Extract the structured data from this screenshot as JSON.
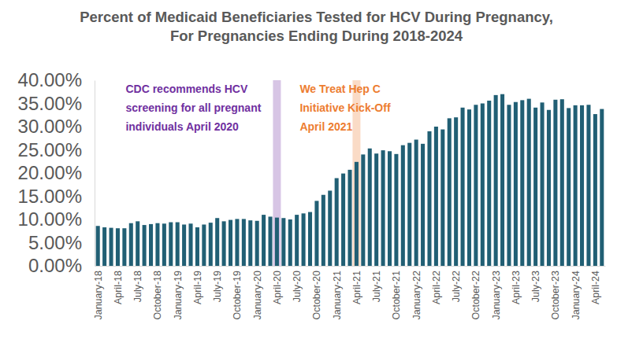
{
  "chart_data": {
    "type": "bar",
    "title": "Percent of Medicaid Beneficiaries Tested for HCV During Pregnancy, For Pregnancies Ending During 2018-2024",
    "categories": [
      "January-18",
      null,
      null,
      "April-18",
      null,
      null,
      "July-18",
      null,
      null,
      "October-18",
      null,
      null,
      "January-19",
      null,
      null,
      "April-19",
      null,
      null,
      "July-19",
      null,
      null,
      "October-19",
      null,
      null,
      "January-20",
      null,
      null,
      "April-20",
      null,
      null,
      "July-20",
      null,
      null,
      "October-20",
      null,
      null,
      "January-21",
      null,
      null,
      "April-21",
      null,
      null,
      "July-21",
      null,
      null,
      "October-21",
      null,
      null,
      "January-22",
      null,
      null,
      "April-22",
      null,
      null,
      "July-22",
      null,
      null,
      "October-22",
      null,
      null,
      "January-23",
      null,
      null,
      "April-23",
      null,
      null,
      "July-23",
      null,
      null,
      "October-23",
      null,
      null,
      "January-24",
      null,
      null,
      "April-24",
      null
    ],
    "values": [
      8.6,
      8.3,
      8.2,
      8.1,
      8.1,
      9.2,
      9.6,
      8.8,
      9.0,
      9.2,
      9.1,
      9.4,
      9.4,
      8.9,
      9.1,
      8.3,
      8.9,
      9.3,
      10.3,
      9.6,
      9.9,
      10.1,
      10.1,
      9.8,
      9.7,
      11.0,
      10.6,
      10.4,
      10.3,
      10.0,
      11.0,
      11.3,
      11.6,
      14.0,
      15.3,
      16.2,
      18.9,
      19.9,
      20.7,
      22.4,
      24.0,
      25.3,
      24.2,
      24.9,
      24.7,
      24.1,
      26.0,
      26.5,
      27.2,
      26.3,
      29.0,
      30.0,
      29.4,
      31.8,
      32.0,
      34.1,
      33.7,
      34.7,
      35.0,
      35.6,
      36.8,
      37.0,
      34.7,
      35.3,
      35.7,
      36.0,
      34.1,
      35.2,
      33.6,
      35.8,
      35.9,
      34.0,
      34.6,
      34.6,
      34.7,
      32.7,
      33.8
    ],
    "color": "#215f74",
    "ylim": [
      0,
      40
    ],
    "yticks": [
      {
        "value": 0,
        "label": "0.00%"
      },
      {
        "value": 5,
        "label": "5.00%"
      },
      {
        "value": 10,
        "label": "10.00%"
      },
      {
        "value": 15,
        "label": "15.00%"
      },
      {
        "value": 20,
        "label": "20.00%"
      },
      {
        "value": 25,
        "label": "25.00%"
      },
      {
        "value": 30,
        "label": "30.00%"
      },
      {
        "value": 35,
        "label": "35.00%"
      },
      {
        "value": 40,
        "label": "40.00%"
      }
    ],
    "grid": false,
    "annotations": [
      {
        "text": [
          "CDC recommends HCV",
          "screening for all pregnant",
          "individuals April 2020"
        ],
        "x": "April-20",
        "color": "#7030a0"
      },
      {
        "text": [
          "We Treat Hep C",
          "Initiative Kick-Off",
          "April 2021"
        ],
        "x": "April-21",
        "color": "#ed7d31"
      }
    ]
  }
}
